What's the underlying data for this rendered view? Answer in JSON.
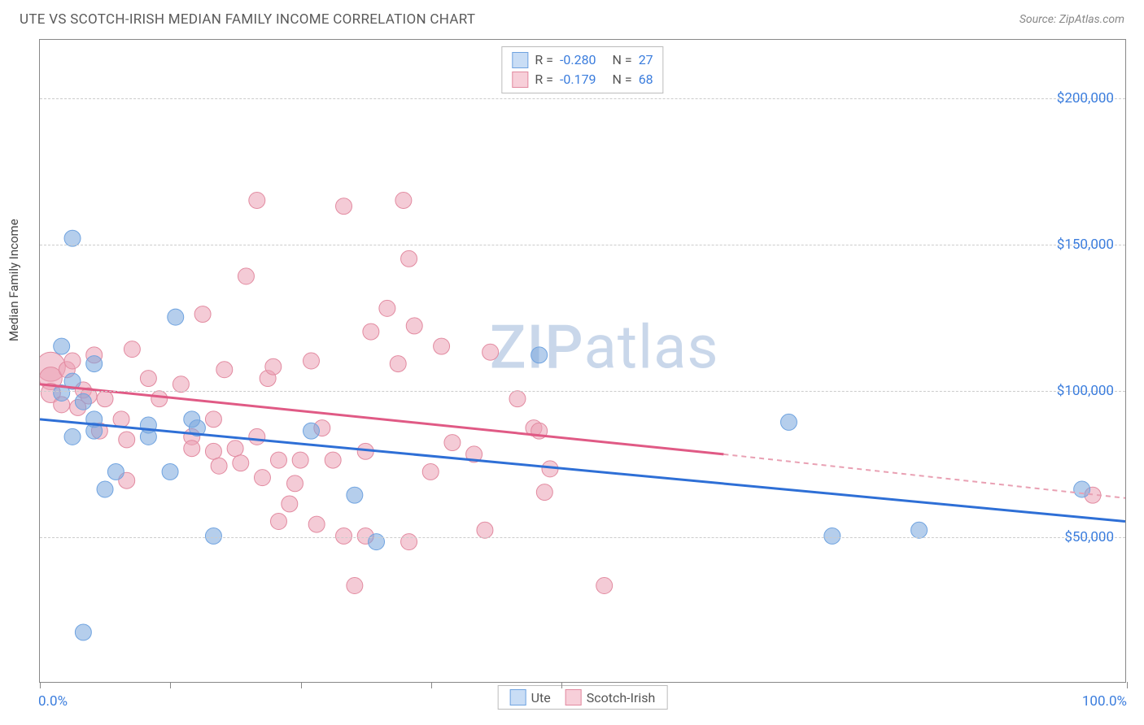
{
  "header": {
    "title": "UTE VS SCOTCH-IRISH MEDIAN FAMILY INCOME CORRELATION CHART",
    "source": "Source: ZipAtlas.com"
  },
  "chart": {
    "type": "scatter",
    "ylabel": "Median Family Income",
    "xlim": [
      0,
      100
    ],
    "ylim": [
      0,
      220000
    ],
    "ytick_values": [
      50000,
      100000,
      150000,
      200000
    ],
    "ytick_labels": [
      "$50,000",
      "$100,000",
      "$150,000",
      "$200,000"
    ],
    "xtick_positions": [
      0,
      12,
      24,
      36,
      48,
      100
    ],
    "xtick_min_label": "0.0%",
    "xtick_max_label": "100.0%",
    "grid_color": "#cccccc",
    "background_color": "#ffffff",
    "text_color": "#444444",
    "value_color": "#3b7ddd",
    "watermark": "ZIPatlas",
    "stats": [
      {
        "r_label": "R =",
        "r": "-0.280",
        "n_label": "N =",
        "n": "27",
        "swatch_fill": "#c9ddf5",
        "swatch_border": "#6fa3e0"
      },
      {
        "r_label": "R =",
        "r": " -0.179",
        "n_label": "N =",
        "n": "68",
        "swatch_fill": "#f7cfd9",
        "swatch_border": "#e28aa0"
      }
    ],
    "legend": [
      {
        "label": "Ute",
        "fill": "#c9ddf5",
        "border": "#6fa3e0"
      },
      {
        "label": "Scotch-Irish",
        "fill": "#f7cfd9",
        "border": "#e28aa0"
      }
    ],
    "series_blue": {
      "color_fill": "rgba(120,165,220,0.55)",
      "color_stroke": "#6fa3e0",
      "radius": 10,
      "trend": {
        "x1": 0,
        "y1": 90000,
        "x2": 100,
        "y2": 55000,
        "color": "#2e6fd6",
        "width": 3
      },
      "points": [
        [
          3,
          152000
        ],
        [
          2,
          115000
        ],
        [
          5,
          109000
        ],
        [
          2,
          99000
        ],
        [
          4,
          96000
        ],
        [
          5,
          90000
        ],
        [
          3,
          84000
        ],
        [
          5,
          86000
        ],
        [
          7,
          72000
        ],
        [
          10,
          84000
        ],
        [
          12,
          72000
        ],
        [
          12.5,
          125000
        ],
        [
          14,
          90000
        ],
        [
          14.5,
          87000
        ],
        [
          16,
          50000
        ],
        [
          25,
          86000
        ],
        [
          29,
          64000
        ],
        [
          31,
          48000
        ],
        [
          46,
          112000
        ],
        [
          69,
          89000
        ],
        [
          73,
          50000
        ],
        [
          81,
          52000
        ],
        [
          96,
          66000
        ],
        [
          4,
          17000
        ],
        [
          10,
          88000
        ],
        [
          6,
          66000
        ],
        [
          3,
          103000
        ]
      ]
    },
    "series_pink": {
      "color_fill": "rgba(235,160,180,0.55)",
      "color_stroke": "#e28aa0",
      "radius": 10,
      "trend_solid": {
        "x1": 0,
        "y1": 102000,
        "x2": 63,
        "y2": 78000,
        "color": "#e05a85",
        "width": 3
      },
      "trend_dashed": {
        "x1": 63,
        "y1": 78000,
        "x2": 100,
        "y2": 63000,
        "color": "#e9a0b3",
        "width": 2
      },
      "points": [
        [
          1,
          108000,
          18
        ],
        [
          1,
          104000,
          14
        ],
        [
          1,
          99000,
          12
        ],
        [
          2,
          95000,
          10
        ],
        [
          2.5,
          107000,
          10
        ],
        [
          3,
          110000,
          10
        ],
        [
          3.5,
          94000,
          10
        ],
        [
          4,
          100000,
          10
        ],
        [
          4.5,
          98000,
          10
        ],
        [
          5,
          112000,
          10
        ],
        [
          5.5,
          86000,
          10
        ],
        [
          6,
          97000,
          10
        ],
        [
          8.5,
          114000,
          10
        ],
        [
          7.5,
          90000,
          10
        ],
        [
          8,
          83000,
          10
        ],
        [
          10,
          104000,
          10
        ],
        [
          11,
          97000,
          10
        ],
        [
          13,
          102000,
          10
        ],
        [
          14,
          84000,
          10
        ],
        [
          14,
          80000,
          10
        ],
        [
          15,
          126000,
          10
        ],
        [
          16,
          90000,
          10
        ],
        [
          16,
          79000,
          10
        ],
        [
          16.5,
          74000,
          10
        ],
        [
          17,
          107000,
          10
        ],
        [
          18,
          80000,
          10
        ],
        [
          18.5,
          75000,
          10
        ],
        [
          19,
          139000,
          10
        ],
        [
          20,
          165000,
          10
        ],
        [
          20,
          84000,
          10
        ],
        [
          20.5,
          70000,
          10
        ],
        [
          21,
          104000,
          10
        ],
        [
          21.5,
          108000,
          10
        ],
        [
          22,
          76000,
          10
        ],
        [
          22,
          55000,
          10
        ],
        [
          23,
          61000,
          10
        ],
        [
          23.5,
          68000,
          10
        ],
        [
          24,
          76000,
          10
        ],
        [
          25,
          110000,
          10
        ],
        [
          25.5,
          54000,
          10
        ],
        [
          26,
          87000,
          10
        ],
        [
          27,
          76000,
          10
        ],
        [
          28,
          163000,
          10
        ],
        [
          28,
          50000,
          10
        ],
        [
          29,
          33000,
          10
        ],
        [
          30,
          79000,
          10
        ],
        [
          30,
          50000,
          10
        ],
        [
          30.5,
          120000,
          10
        ],
        [
          32,
          128000,
          10
        ],
        [
          33,
          109000,
          10
        ],
        [
          33.5,
          165000,
          10
        ],
        [
          34,
          145000,
          10
        ],
        [
          34.5,
          122000,
          10
        ],
        [
          34,
          48000,
          10
        ],
        [
          36,
          72000,
          10
        ],
        [
          37,
          115000,
          10
        ],
        [
          38,
          82000,
          10
        ],
        [
          40,
          78000,
          10
        ],
        [
          41,
          52000,
          10
        ],
        [
          41.5,
          113000,
          10
        ],
        [
          44,
          97000,
          10
        ],
        [
          45.5,
          87000,
          10
        ],
        [
          46,
          86000,
          10
        ],
        [
          46.5,
          65000,
          10
        ],
        [
          47,
          73000,
          10
        ],
        [
          52,
          33000,
          10
        ],
        [
          97,
          64000,
          10
        ],
        [
          8,
          69000,
          10
        ]
      ]
    }
  }
}
